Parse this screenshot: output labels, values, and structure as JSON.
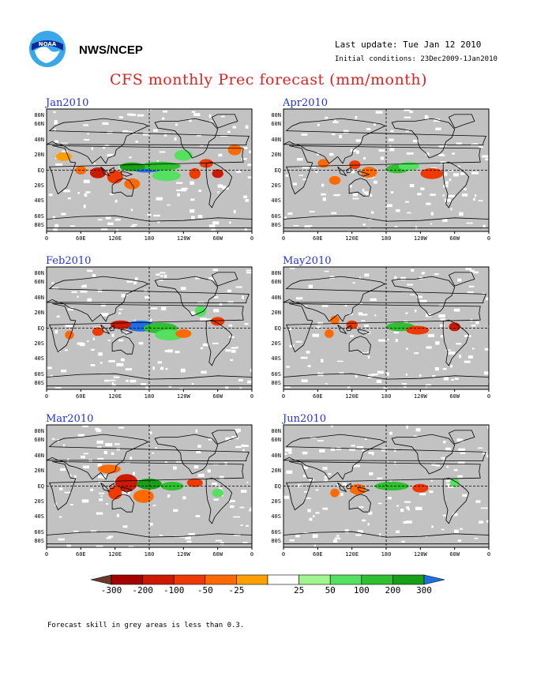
{
  "header": {
    "agency": "NWS/NCEP",
    "last_update": "Last update: Tue Jan 12 2010",
    "initial_conditions": "Initial conditions: 23Dec2009-1Jan2010",
    "title": "CFS monthly Prec forecast (mm/month)"
  },
  "lat_labels": [
    "80N",
    "60N",
    "40N",
    "20N",
    "EQ",
    "20S",
    "40S",
    "60S",
    "80S"
  ],
  "lon_labels": [
    "0",
    "60E",
    "120E",
    "180",
    "120W",
    "60W",
    "0"
  ],
  "panels": [
    {
      "month": "Jan2010",
      "col": 0,
      "row": 0
    },
    {
      "month": "Apr2010",
      "col": 1,
      "row": 0
    },
    {
      "month": "Feb2010",
      "col": 0,
      "row": 1
    },
    {
      "month": "May2010",
      "col": 1,
      "row": 1
    },
    {
      "month": "Mar2010",
      "col": 0,
      "row": 2
    },
    {
      "month": "Jun2010",
      "col": 1,
      "row": 2
    }
  ],
  "colorbar": {
    "labels": [
      "-300",
      "-200",
      "-100",
      "-50",
      "-25",
      "25",
      "50",
      "100",
      "200",
      "300"
    ],
    "colors": [
      "#6b3a2a",
      "#a50000",
      "#cc1a00",
      "#ee3a00",
      "#ff6a00",
      "#ffa000",
      "#ffffff",
      "#a0f590",
      "#55e060",
      "#2fc02f",
      "#16a016",
      "#0a8a0a",
      "#1f6ee8"
    ]
  },
  "footnote": "Forecast skill in grey areas is less than 0.3."
}
